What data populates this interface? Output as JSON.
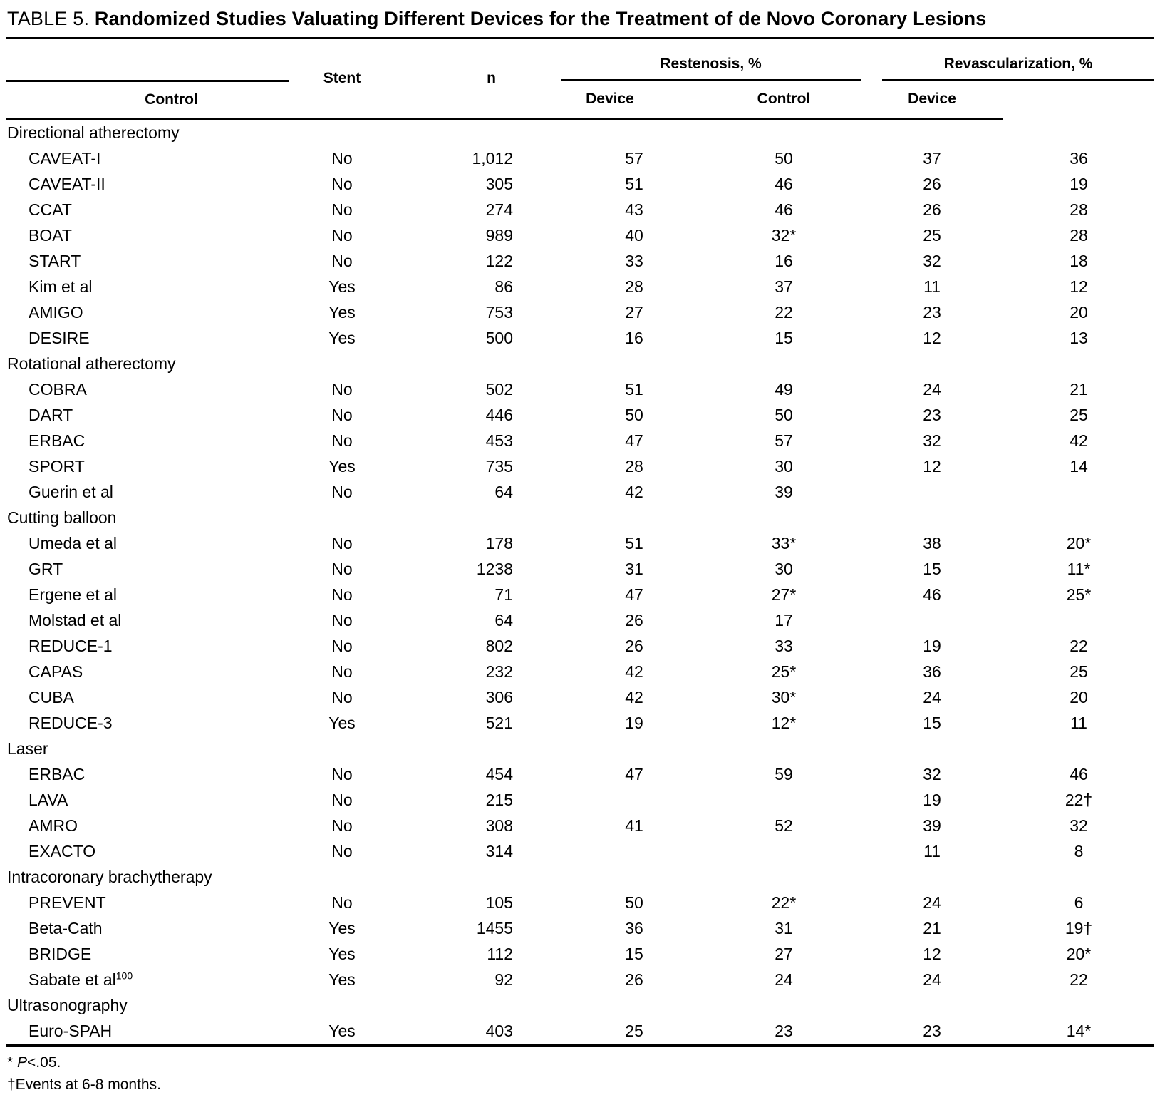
{
  "title": {
    "prefix": "TABLE 5.",
    "caption": "Randomized Studies Valuating Different Devices for the Treatment of de Novo Coronary Lesions"
  },
  "header": {
    "stent": "Stent",
    "n": "n",
    "group_restenosis": "Restenosis, %",
    "group_revascularization": "Revascularization, %",
    "control": "Control",
    "device": "Device"
  },
  "sections": [
    {
      "label": "Directional atherectomy",
      "rows": [
        {
          "name": "CAVEAT-I",
          "sup": "",
          "stent": "No",
          "n": "1,012",
          "rc": "57",
          "rd": "50",
          "vc": "37",
          "vd": "36"
        },
        {
          "name": "CAVEAT-II",
          "sup": "",
          "stent": "No",
          "n": "305",
          "rc": "51",
          "rd": "46",
          "vc": "26",
          "vd": "19"
        },
        {
          "name": "CCAT",
          "sup": "",
          "stent": "No",
          "n": "274",
          "rc": "43",
          "rd": "46",
          "vc": "26",
          "vd": "28"
        },
        {
          "name": "BOAT",
          "sup": "",
          "stent": "No",
          "n": "989",
          "rc": "40",
          "rd": "32*",
          "vc": "25",
          "vd": "28"
        },
        {
          "name": "START",
          "sup": "",
          "stent": "No",
          "n": "122",
          "rc": "33",
          "rd": "16",
          "vc": "32",
          "vd": "18"
        },
        {
          "name": "Kim et al",
          "sup": "",
          "stent": "Yes",
          "n": "86",
          "rc": "28",
          "rd": "37",
          "vc": "11",
          "vd": "12"
        },
        {
          "name": "AMIGO",
          "sup": "",
          "stent": "Yes",
          "n": "753",
          "rc": "27",
          "rd": "22",
          "vc": "23",
          "vd": "20"
        },
        {
          "name": "DESIRE",
          "sup": "",
          "stent": "Yes",
          "n": "500",
          "rc": "16",
          "rd": "15",
          "vc": "12",
          "vd": "13"
        }
      ]
    },
    {
      "label": "Rotational atherectomy",
      "rows": [
        {
          "name": "COBRA",
          "sup": "",
          "stent": "No",
          "n": "502",
          "rc": "51",
          "rd": "49",
          "vc": "24",
          "vd": "21"
        },
        {
          "name": "DART",
          "sup": "",
          "stent": "No",
          "n": "446",
          "rc": "50",
          "rd": "50",
          "vc": "23",
          "vd": "25"
        },
        {
          "name": "ERBAC",
          "sup": "",
          "stent": "No",
          "n": "453",
          "rc": "47",
          "rd": "57",
          "vc": "32",
          "vd": "42"
        },
        {
          "name": "SPORT",
          "sup": "",
          "stent": "Yes",
          "n": "735",
          "rc": "28",
          "rd": "30",
          "vc": "12",
          "vd": "14"
        },
        {
          "name": "Guerin et al",
          "sup": "",
          "stent": "No",
          "n": "64",
          "rc": "42",
          "rd": "39",
          "vc": "",
          "vd": ""
        }
      ]
    },
    {
      "label": "Cutting balloon",
      "rows": [
        {
          "name": "Umeda et al",
          "sup": "",
          "stent": "No",
          "n": "178",
          "rc": "51",
          "rd": "33*",
          "vc": "38",
          "vd": "20*"
        },
        {
          "name": "GRT",
          "sup": "",
          "stent": "No",
          "n": "1238",
          "rc": "31",
          "rd": "30",
          "vc": "15",
          "vd": "11*"
        },
        {
          "name": "Ergene et al",
          "sup": "",
          "stent": "No",
          "n": "71",
          "rc": "47",
          "rd": "27*",
          "vc": "46",
          "vd": "25*"
        },
        {
          "name": "Molstad et al",
          "sup": "",
          "stent": "No",
          "n": "64",
          "rc": "26",
          "rd": "17",
          "vc": "",
          "vd": ""
        },
        {
          "name": "REDUCE-1",
          "sup": "",
          "stent": "No",
          "n": "802",
          "rc": "26",
          "rd": "33",
          "vc": "19",
          "vd": "22"
        },
        {
          "name": "CAPAS",
          "sup": "",
          "stent": "No",
          "n": "232",
          "rc": "42",
          "rd": "25*",
          "vc": "36",
          "vd": "25"
        },
        {
          "name": "CUBA",
          "sup": "",
          "stent": "No",
          "n": "306",
          "rc": "42",
          "rd": "30*",
          "vc": "24",
          "vd": "20"
        },
        {
          "name": "REDUCE-3",
          "sup": "",
          "stent": "Yes",
          "n": "521",
          "rc": "19",
          "rd": "12*",
          "vc": "15",
          "vd": "11"
        }
      ]
    },
    {
      "label": "Laser",
      "rows": [
        {
          "name": "ERBAC",
          "sup": "",
          "stent": "No",
          "n": "454",
          "rc": "47",
          "rd": "59",
          "vc": "32",
          "vd": "46"
        },
        {
          "name": "LAVA",
          "sup": "",
          "stent": "No",
          "n": "215",
          "rc": "",
          "rd": "",
          "vc": "19",
          "vd": "22†"
        },
        {
          "name": "AMRO",
          "sup": "",
          "stent": "No",
          "n": "308",
          "rc": "41",
          "rd": "52",
          "vc": "39",
          "vd": "32"
        },
        {
          "name": "EXACTO",
          "sup": "",
          "stent": "No",
          "n": "314",
          "rc": "",
          "rd": "",
          "vc": "11",
          "vd": "8"
        }
      ]
    },
    {
      "label": "Intracoronary brachytherapy",
      "rows": [
        {
          "name": "PREVENT",
          "sup": "",
          "stent": "No",
          "n": "105",
          "rc": "50",
          "rd": "22*",
          "vc": "24",
          "vd": "6"
        },
        {
          "name": "Beta-Cath",
          "sup": "",
          "stent": "Yes",
          "n": "1455",
          "rc": "36",
          "rd": "31",
          "vc": "21",
          "vd": "19†"
        },
        {
          "name": "BRIDGE",
          "sup": "",
          "stent": "Yes",
          "n": "112",
          "rc": "15",
          "rd": "27",
          "vc": "12",
          "vd": "20*"
        },
        {
          "name": "Sabate et al",
          "sup": "100",
          "stent": "Yes",
          "n": "92",
          "rc": "26",
          "rd": "24",
          "vc": "24",
          "vd": "22"
        }
      ]
    },
    {
      "label": "Ultrasonography",
      "rows": [
        {
          "name": "Euro-SPAH",
          "sup": "",
          "stent": "Yes",
          "n": "403",
          "rc": "25",
          "rd": "23",
          "vc": "23",
          "vd": "14*"
        }
      ]
    }
  ],
  "footnotes": {
    "star_symbol": "*",
    "star_p": "P",
    "star_rest": "<.05.",
    "dagger": "†Events at 6-8 months."
  }
}
